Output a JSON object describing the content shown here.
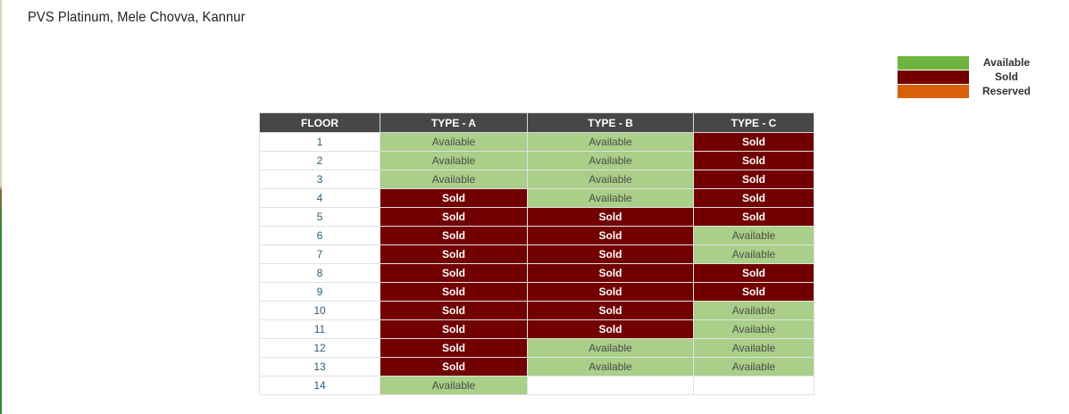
{
  "page": {
    "title": "PVS Platinum, Mele Chovva, Kannur"
  },
  "legend": {
    "items": [
      {
        "label": "Available",
        "color": "#6db33f"
      },
      {
        "label": "Sold",
        "color": "#720000"
      },
      {
        "label": "Reserved",
        "color": "#d9600b"
      }
    ]
  },
  "table": {
    "headers": [
      "FLOOR",
      "TYPE - A",
      "TYPE - B",
      "TYPE - C"
    ],
    "rows": [
      {
        "floor": "1",
        "cells": [
          "Available",
          "Available",
          "Sold"
        ]
      },
      {
        "floor": "2",
        "cells": [
          "Available",
          "Available",
          "Sold"
        ]
      },
      {
        "floor": "3",
        "cells": [
          "Available",
          "Available",
          "Sold"
        ]
      },
      {
        "floor": "4",
        "cells": [
          "Sold",
          "Available",
          "Sold"
        ]
      },
      {
        "floor": "5",
        "cells": [
          "Sold",
          "Sold",
          "Sold"
        ]
      },
      {
        "floor": "6",
        "cells": [
          "Sold",
          "Sold",
          "Available"
        ]
      },
      {
        "floor": "7",
        "cells": [
          "Sold",
          "Sold",
          "Available"
        ]
      },
      {
        "floor": "8",
        "cells": [
          "Sold",
          "Sold",
          "Sold"
        ]
      },
      {
        "floor": "9",
        "cells": [
          "Sold",
          "Sold",
          "Sold"
        ]
      },
      {
        "floor": "10",
        "cells": [
          "Sold",
          "Sold",
          "Available"
        ]
      },
      {
        "floor": "11",
        "cells": [
          "Sold",
          "Sold",
          "Available"
        ]
      },
      {
        "floor": "12",
        "cells": [
          "Sold",
          "Available",
          "Available"
        ]
      },
      {
        "floor": "13",
        "cells": [
          "Sold",
          "Available",
          "Available"
        ]
      },
      {
        "floor": "14",
        "cells": [
          "Available",
          "",
          ""
        ]
      }
    ]
  }
}
